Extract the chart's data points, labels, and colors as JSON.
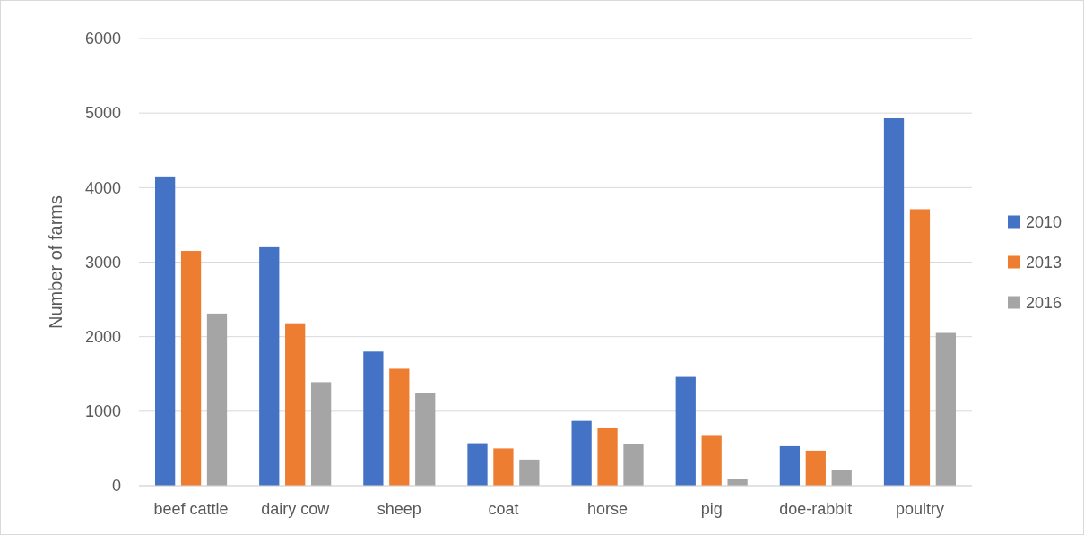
{
  "chart_data": {
    "type": "bar",
    "ylabel": "Number of farms",
    "categories": [
      "beef cattle",
      "dairy cow",
      "sheep",
      "coat",
      "horse",
      "pig",
      "doe-rabbit",
      "poultry"
    ],
    "series": [
      {
        "name": "2010",
        "color": "#4472c4",
        "values": [
          4150,
          3200,
          1800,
          570,
          870,
          1460,
          530,
          4930
        ]
      },
      {
        "name": "2013",
        "color": "#ed7d31",
        "values": [
          3150,
          2180,
          1570,
          500,
          770,
          680,
          470,
          3710
        ]
      },
      {
        "name": "2016",
        "color": "#a5a5a5",
        "values": [
          2310,
          1390,
          1250,
          350,
          560,
          90,
          210,
          2050
        ]
      }
    ],
    "ylim": [
      0,
      6000
    ],
    "yticks": [
      0,
      1000,
      2000,
      3000,
      4000,
      5000,
      6000
    ],
    "grid": "y",
    "legend": "right"
  }
}
